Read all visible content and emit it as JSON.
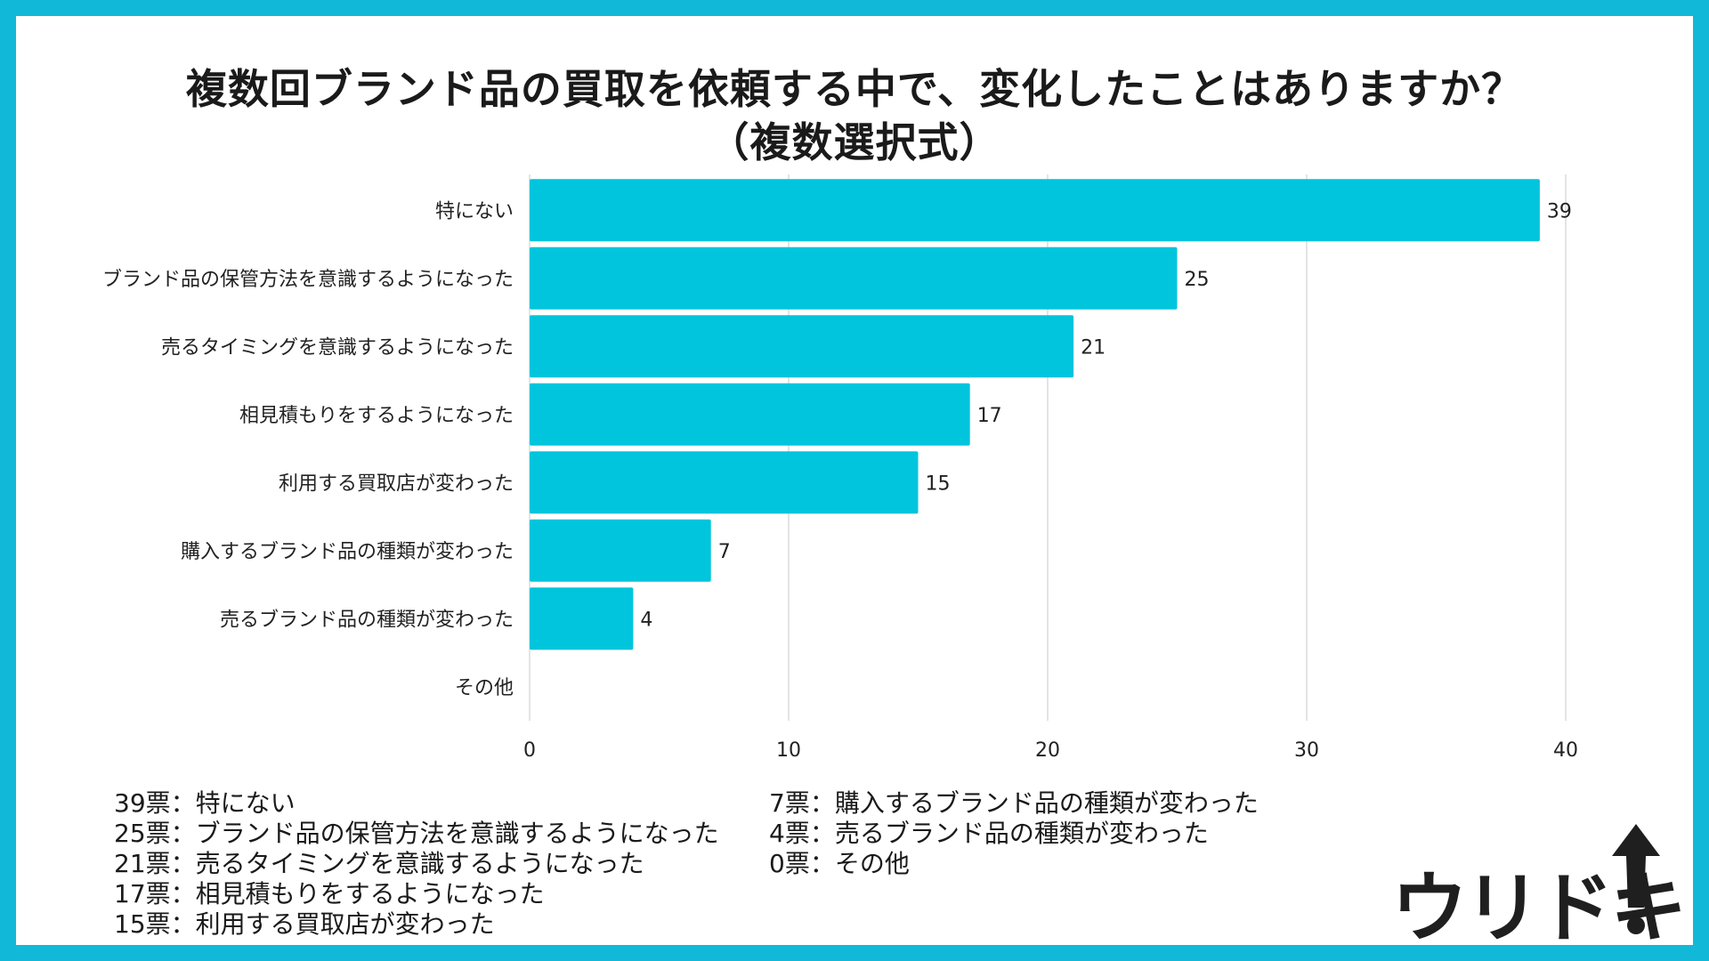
{
  "title_line1": "複数回ブランド品の買取を依頼する中で、変化したことはありますか？",
  "title_line2": "（複数選択式）",
  "chart_data": {
    "type": "bar",
    "orientation": "horizontal",
    "categories": [
      "特にない",
      "ブランド品の保管方法を意識するようになった",
      "売るタイミングを意識するようになった",
      "相見積もりをするようになった",
      "利用する買取店が変わった",
      "購入するブランド品の種類が変わった",
      "売るブランド品の種類が変わった",
      "その他"
    ],
    "values": [
      39,
      25,
      21,
      17,
      15,
      7,
      4,
      0
    ],
    "xlim": [
      0,
      40
    ],
    "xticks": [
      0,
      10,
      20,
      30,
      40
    ],
    "grid": true,
    "bar_color": "#00c5dc"
  },
  "legend_left": [
    "39票：特にない",
    "25票：ブランド品の保管方法を意識するようになった",
    "21票：売るタイミングを意識するようになった",
    "17票：相見積もりをするようになった",
    "15票：利用する買取店が変わった"
  ],
  "legend_right": [
    "7票：購入するブランド品の種類が変わった",
    "4票：売るブランド品の種類が変わった",
    "0票：その他"
  ],
  "logo_text": "ウリドキ",
  "colors": {
    "frame": "#12b8d7",
    "bar": "#00c5dc"
  }
}
